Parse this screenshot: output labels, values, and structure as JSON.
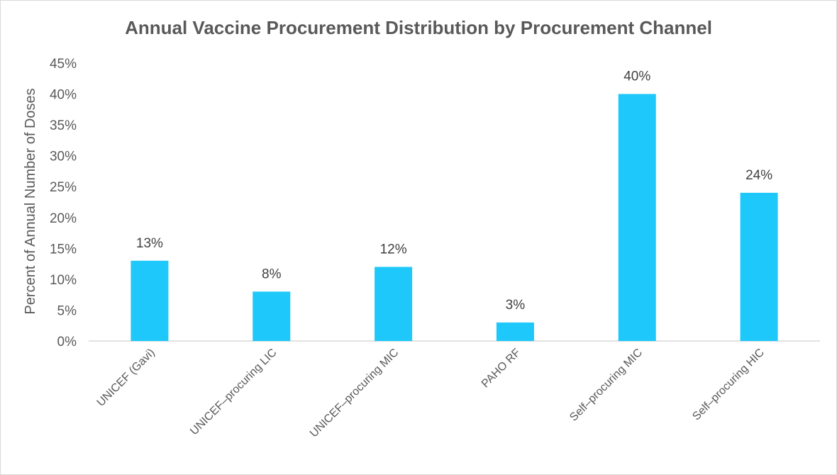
{
  "chart_data": {
    "type": "bar",
    "title": "Annual Vaccine Procurement Distribution by Procurement Channel",
    "xlabel": "",
    "ylabel": "Percent of Annual Number of Doses",
    "categories": [
      "UNICEF (Gavi)",
      "UNICEF–procuring LIC",
      "UNICEF–procuring MIC",
      "PAHO RF",
      "Self–procuring MIC",
      "Self–procuring HIC"
    ],
    "values": [
      13,
      8,
      12,
      3,
      40,
      24
    ],
    "data_labels": [
      "13%",
      "8%",
      "12%",
      "3%",
      "40%",
      "24%"
    ],
    "y_ticks": [
      "0%",
      "5%",
      "10%",
      "15%",
      "20%",
      "25%",
      "30%",
      "35%",
      "40%",
      "45%"
    ],
    "ylim": [
      0,
      45
    ],
    "bar_color": "#1EC8FA",
    "grid": false,
    "legend": "none"
  }
}
